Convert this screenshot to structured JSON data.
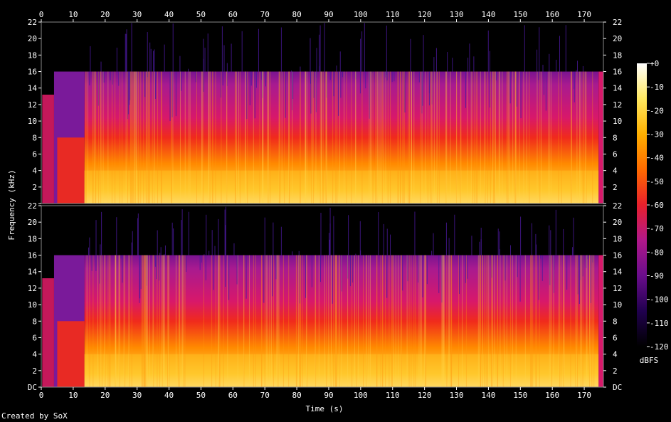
{
  "chart_data": {
    "type": "heatmap",
    "title": "",
    "xlabel": "Time (s)",
    "ylabel": "Frequency (kHz)",
    "xlim": [
      0,
      176
    ],
    "ylim": [
      0,
      22
    ],
    "x_ticks": [
      "0",
      "10",
      "20",
      "30",
      "40",
      "50",
      "60",
      "70",
      "80",
      "90",
      "100",
      "110",
      "120",
      "130",
      "140",
      "150",
      "160",
      "170"
    ],
    "y_ticks": [
      "DC",
      "2",
      "4",
      "6",
      "8",
      "10",
      "12",
      "14",
      "16",
      "18",
      "20",
      "22"
    ],
    "channels": [
      {
        "name": "",
        "cutoff_khz": 16
      },
      {
        "name": "",
        "cutoff_khz": 16
      }
    ],
    "colorbar": {
      "label": "dBFS",
      "ticks": [
        "+0",
        "-10",
        "-20",
        "-30",
        "-40",
        "-50",
        "-60",
        "-70",
        "-80",
        "-90",
        "-100",
        "-110",
        "-120"
      ],
      "range": [
        -120,
        0
      ],
      "colors": [
        "#000000",
        "#20004e",
        "#6a0d8c",
        "#b0188a",
        "#e8202c",
        "#ff6a00",
        "#ffb000",
        "#ffe860",
        "#ffffff"
      ]
    },
    "credit": "Created by SoX"
  }
}
